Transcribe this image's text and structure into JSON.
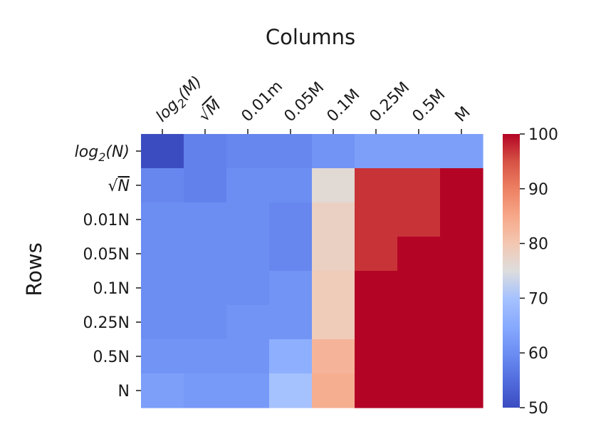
{
  "chart_data": {
    "type": "heatmap",
    "xlabel": "Columns",
    "ylabel": "Rows",
    "x_categories": [
      "log2(M)",
      "√M",
      "0.01m",
      "0.05M",
      "0.1M",
      "0.25M",
      "0.5M",
      "M"
    ],
    "y_categories": [
      "log2(N)",
      "√N",
      "0.01N",
      "0.05N",
      "0.1N",
      "0.25N",
      "0.5N",
      "N"
    ],
    "values": [
      [
        50,
        58,
        59,
        59,
        61,
        63,
        63,
        63
      ],
      [
        59,
        58,
        60,
        60,
        76,
        97,
        97,
        100
      ],
      [
        60,
        60,
        60,
        59,
        78,
        97,
        97,
        100
      ],
      [
        60,
        60,
        60,
        59,
        78,
        97,
        100,
        100
      ],
      [
        60,
        60,
        60,
        61,
        79,
        100,
        100,
        100
      ],
      [
        60,
        60,
        61,
        61,
        79,
        100,
        100,
        100
      ],
      [
        61,
        61,
        61,
        66,
        83,
        100,
        100,
        100
      ],
      [
        63,
        62,
        62,
        70,
        84,
        100,
        100,
        100
      ]
    ],
    "colorbar": {
      "min": 50,
      "max": 100,
      "ticks": [
        "50",
        "60",
        "70",
        "80",
        "90",
        "100"
      ],
      "colormap": "coolwarm"
    }
  }
}
